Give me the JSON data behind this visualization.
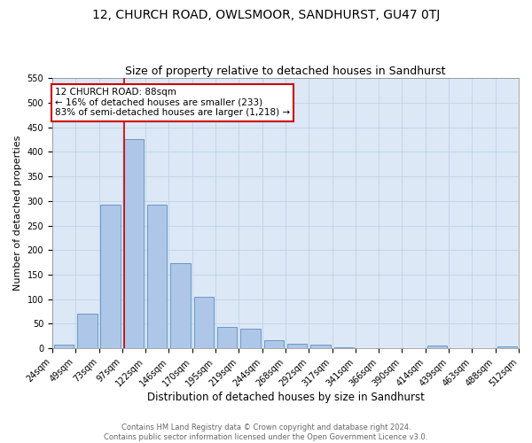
{
  "title1": "12, CHURCH ROAD, OWLSMOOR, SANDHURST, GU47 0TJ",
  "title2": "Size of property relative to detached houses in Sandhurst",
  "xlabel": "Distribution of detached houses by size in Sandhurst",
  "ylabel": "Number of detached properties",
  "footnote": "Contains HM Land Registry data © Crown copyright and database right 2024.\nContains public sector information licensed under the Open Government Licence v3.0.",
  "bar_centers": [
    0,
    1,
    2,
    3,
    4,
    5,
    6,
    7,
    8,
    9,
    10,
    11,
    12,
    13,
    14,
    15,
    16,
    17,
    18,
    19
  ],
  "bar_heights": [
    8,
    70,
    293,
    425,
    293,
    173,
    105,
    44,
    40,
    17,
    10,
    8,
    3,
    1,
    1,
    0,
    5,
    0,
    0,
    4
  ],
  "tick_labels": [
    "24sqm",
    "49sqm",
    "73sqm",
    "97sqm",
    "122sqm",
    "146sqm",
    "170sqm",
    "195sqm",
    "219sqm",
    "244sqm",
    "268sqm",
    "292sqm",
    "317sqm",
    "341sqm",
    "366sqm",
    "390sqm",
    "414sqm",
    "439sqm",
    "463sqm",
    "488sqm",
    "512sqm"
  ],
  "vline_idx": 2.6,
  "vline_color": "#cc0000",
  "ylim": [
    0,
    550
  ],
  "yticks": [
    0,
    50,
    100,
    150,
    200,
    250,
    300,
    350,
    400,
    450,
    500,
    550
  ],
  "annotation_text": "12 CHURCH ROAD: 88sqm\n← 16% of detached houses are smaller (233)\n83% of semi-detached houses are larger (1,218) →",
  "annotation_box_color": "#cc0000",
  "bar_color": "#aec6e8",
  "bar_edge_color": "#5a8fc0",
  "grid_color": "#b8cfe8",
  "background_color": "#dce8f5",
  "title1_fontsize": 10,
  "title2_fontsize": 9,
  "tick_fontsize": 7,
  "ylabel_fontsize": 8,
  "xlabel_fontsize": 8.5,
  "footnote_fontsize": 6,
  "annotation_fontsize": 7.5
}
